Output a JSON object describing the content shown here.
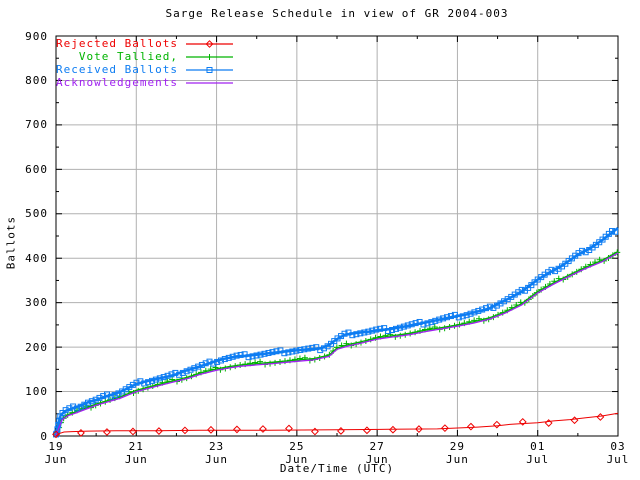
{
  "chart_data": {
    "type": "line",
    "title": "Sarge Release Schedule in view of GR 2004-003",
    "xlabel": "Date/Time (UTC)",
    "ylabel": "Ballots",
    "ylim": [
      0,
      900
    ],
    "xlim_days": [
      0,
      14
    ],
    "grid": true,
    "legend_position": "top-left-inside",
    "grid_color": "#b0b0b0",
    "border_color": "#000000",
    "y_major_ticks": [
      0,
      100,
      200,
      300,
      400,
      500,
      600,
      700,
      800,
      900
    ],
    "y_minor_ticks": [
      50,
      150,
      250,
      350,
      450,
      550,
      650,
      750,
      850
    ],
    "x_major_ticks": [
      {
        "day": 0,
        "line1": "19",
        "line2": "Jun"
      },
      {
        "day": 2,
        "line1": "21",
        "line2": "Jun"
      },
      {
        "day": 4,
        "line1": "23",
        "line2": "Jun"
      },
      {
        "day": 6,
        "line1": "25",
        "line2": "Jun"
      },
      {
        "day": 8,
        "line1": "27",
        "line2": "Jun"
      },
      {
        "day": 10,
        "line1": "29",
        "line2": "Jun"
      },
      {
        "day": 12,
        "line1": "01",
        "line2": "Jul"
      },
      {
        "day": 14,
        "line1": "03",
        "line2": "Jul"
      }
    ],
    "x_minor_ticks": [
      1,
      3,
      5,
      7,
      9,
      11,
      13
    ],
    "series": [
      {
        "name": "Vote Tallied,",
        "color": "#00b400",
        "marker": "plus",
        "marker_spacing_px": 5,
        "line_width": 1.3,
        "points": [
          [
            0,
            0
          ],
          [
            0.07,
            20
          ],
          [
            0.15,
            38
          ],
          [
            0.3,
            48
          ],
          [
            0.5,
            55
          ],
          [
            0.8,
            65
          ],
          [
            1.0,
            72
          ],
          [
            1.3,
            80
          ],
          [
            1.6,
            88
          ],
          [
            2.0,
            103
          ],
          [
            2.3,
            110
          ],
          [
            2.6,
            117
          ],
          [
            3.0,
            126
          ],
          [
            3.3,
            133
          ],
          [
            3.6,
            142
          ],
          [
            4.0,
            151
          ],
          [
            4.3,
            156
          ],
          [
            4.6,
            160
          ],
          [
            5.0,
            163
          ],
          [
            5.4,
            166
          ],
          [
            6.0,
            171
          ],
          [
            6.4,
            174
          ],
          [
            6.8,
            182
          ],
          [
            7.0,
            198
          ],
          [
            7.3,
            206
          ],
          [
            7.6,
            212
          ],
          [
            8.0,
            221
          ],
          [
            8.4,
            226
          ],
          [
            8.8,
            231
          ],
          [
            9.2,
            238
          ],
          [
            9.6,
            244
          ],
          [
            10.0,
            250
          ],
          [
            10.4,
            257
          ],
          [
            10.8,
            266
          ],
          [
            11.2,
            280
          ],
          [
            11.6,
            298
          ],
          [
            12.0,
            325
          ],
          [
            12.4,
            345
          ],
          [
            12.8,
            363
          ],
          [
            13.2,
            380
          ],
          [
            13.6,
            395
          ],
          [
            14.0,
            415
          ]
        ]
      },
      {
        "name": "Received Ballots",
        "color": "#0d7cf2",
        "marker": "square",
        "marker_spacing_px": 4,
        "line_width": 2.5,
        "points": [
          [
            0,
            0
          ],
          [
            0.05,
            25
          ],
          [
            0.12,
            48
          ],
          [
            0.25,
            57
          ],
          [
            0.4,
            62
          ],
          [
            0.6,
            68
          ],
          [
            0.8,
            76
          ],
          [
            1.0,
            81
          ],
          [
            1.2,
            88
          ],
          [
            1.4,
            93
          ],
          [
            1.6,
            99
          ],
          [
            1.8,
            108
          ],
          [
            2.0,
            117
          ],
          [
            2.2,
            122
          ],
          [
            2.5,
            128
          ],
          [
            2.8,
            134
          ],
          [
            3.0,
            139
          ],
          [
            3.2,
            146
          ],
          [
            3.5,
            154
          ],
          [
            3.8,
            163
          ],
          [
            4.0,
            169
          ],
          [
            4.2,
            174
          ],
          [
            4.5,
            179
          ],
          [
            4.8,
            181
          ],
          [
            5.0,
            183
          ],
          [
            5.3,
            186
          ],
          [
            5.6,
            189
          ],
          [
            6.0,
            193
          ],
          [
            6.3,
            195
          ],
          [
            6.6,
            197
          ],
          [
            6.8,
            205
          ],
          [
            7.0,
            218
          ],
          [
            7.2,
            228
          ],
          [
            7.5,
            232
          ],
          [
            7.8,
            235
          ],
          [
            8.0,
            238
          ],
          [
            8.3,
            240
          ],
          [
            8.6,
            245
          ],
          [
            9.0,
            252
          ],
          [
            9.3,
            257
          ],
          [
            9.6,
            263
          ],
          [
            10.0,
            270
          ],
          [
            10.2,
            273
          ],
          [
            10.5,
            280
          ],
          [
            10.8,
            287
          ],
          [
            11.0,
            297
          ],
          [
            11.3,
            310
          ],
          [
            11.6,
            325
          ],
          [
            12.0,
            352
          ],
          [
            12.3,
            368
          ],
          [
            12.6,
            383
          ],
          [
            13.0,
            408
          ],
          [
            13.3,
            422
          ],
          [
            13.6,
            440
          ],
          [
            14.0,
            468
          ]
        ]
      },
      {
        "name": "Acknowledgements",
        "color": "#a020f0",
        "marker": "none",
        "marker_spacing_px": 0,
        "line_width": 1.3,
        "points": [
          [
            0,
            0
          ],
          [
            0.07,
            18
          ],
          [
            0.15,
            36
          ],
          [
            0.3,
            46
          ],
          [
            0.5,
            52
          ],
          [
            0.8,
            62
          ],
          [
            1.0,
            69
          ],
          [
            1.3,
            77
          ],
          [
            1.6,
            85
          ],
          [
            2.0,
            100
          ],
          [
            2.3,
            107
          ],
          [
            2.6,
            114
          ],
          [
            3.0,
            123
          ],
          [
            3.3,
            130
          ],
          [
            3.6,
            139
          ],
          [
            4.0,
            148
          ],
          [
            4.3,
            153
          ],
          [
            4.6,
            157
          ],
          [
            5.0,
            160
          ],
          [
            5.4,
            163
          ],
          [
            6.0,
            168
          ],
          [
            6.4,
            171
          ],
          [
            6.8,
            179
          ],
          [
            7.0,
            195
          ],
          [
            7.3,
            203
          ],
          [
            7.6,
            209
          ],
          [
            8.0,
            218
          ],
          [
            8.4,
            223
          ],
          [
            8.8,
            228
          ],
          [
            9.2,
            235
          ],
          [
            9.6,
            241
          ],
          [
            10.0,
            247
          ],
          [
            10.4,
            254
          ],
          [
            10.8,
            263
          ],
          [
            11.2,
            277
          ],
          [
            11.6,
            295
          ],
          [
            12.0,
            322
          ],
          [
            12.4,
            342
          ],
          [
            12.8,
            360
          ],
          [
            13.2,
            377
          ],
          [
            13.6,
            392
          ],
          [
            14.0,
            412
          ]
        ]
      },
      {
        "name": "Rejected Ballots",
        "color": "#ee0000",
        "marker": "diamond",
        "marker_spacing_px": 26,
        "line_width": 1,
        "points": [
          [
            0,
            0
          ],
          [
            0.1,
            6
          ],
          [
            0.2,
            9
          ],
          [
            0.4,
            10
          ],
          [
            0.8,
            11
          ],
          [
            1.5,
            12
          ],
          [
            2.5,
            12
          ],
          [
            3.6,
            13
          ],
          [
            5.3,
            13
          ],
          [
            7.0,
            14
          ],
          [
            8.3,
            15
          ],
          [
            9.5,
            16
          ],
          [
            10.0,
            18
          ],
          [
            10.5,
            20
          ],
          [
            11.0,
            23
          ],
          [
            11.3,
            26
          ],
          [
            11.6,
            28
          ],
          [
            12.0,
            30
          ],
          [
            12.4,
            34
          ],
          [
            12.8,
            37
          ],
          [
            13.2,
            41
          ],
          [
            13.6,
            45
          ],
          [
            14.0,
            51
          ]
        ]
      }
    ],
    "legend": [
      {
        "label": "Rejected Ballots",
        "color": "#ee0000",
        "marker": "diamond"
      },
      {
        "label": "Vote Tallied,",
        "color": "#00b400",
        "marker": "plus"
      },
      {
        "label": "Received Ballots",
        "color": "#0d7cf2",
        "marker": "square"
      },
      {
        "label": "Acknowledgements",
        "color": "#a020f0",
        "marker": "none"
      }
    ]
  }
}
